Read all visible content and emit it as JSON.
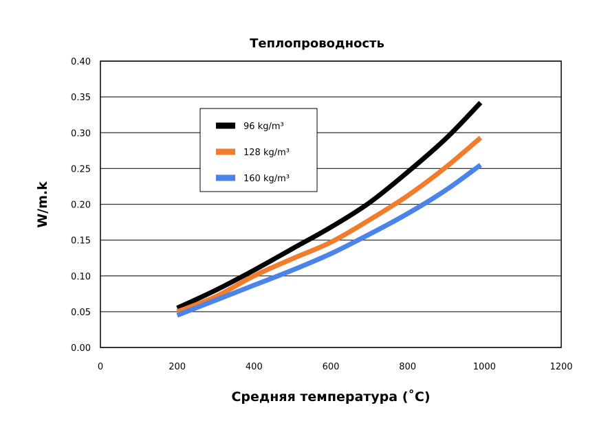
{
  "chart_data": {
    "type": "line",
    "title": "Теплопроводность",
    "xlabel": "Средняя температура (˚C)",
    "ylabel": "W/m.k",
    "xlim": [
      0,
      1200
    ],
    "ylim": [
      0,
      0.4
    ],
    "xticks": [
      "0",
      "200",
      "400",
      "600",
      "800",
      "1000",
      "1200"
    ],
    "yticks": [
      "0.00",
      "0.05",
      "0.10",
      "0.15",
      "0.20",
      "0.25",
      "0.30",
      "0.35",
      "0.40"
    ],
    "grid": "horizontal",
    "legend_position": "top-left",
    "x": [
      200,
      300,
      400,
      500,
      600,
      700,
      800,
      900,
      990
    ],
    "series": [
      {
        "name": "96 kg/m³",
        "color": "#000000",
        "values": [
          0.055,
          0.08,
          0.108,
          0.138,
          0.168,
          0.202,
          0.245,
          0.292,
          0.342
        ]
      },
      {
        "name": "128 kg/m³",
        "color": "#f07c2c",
        "values": [
          0.05,
          0.071,
          0.1,
          0.124,
          0.147,
          0.178,
          0.212,
          0.252,
          0.293
        ]
      },
      {
        "name": "160 kg/m³",
        "color": "#4a84ea",
        "values": [
          0.045,
          0.066,
          0.087,
          0.108,
          0.131,
          0.158,
          0.187,
          0.22,
          0.255
        ]
      }
    ]
  }
}
